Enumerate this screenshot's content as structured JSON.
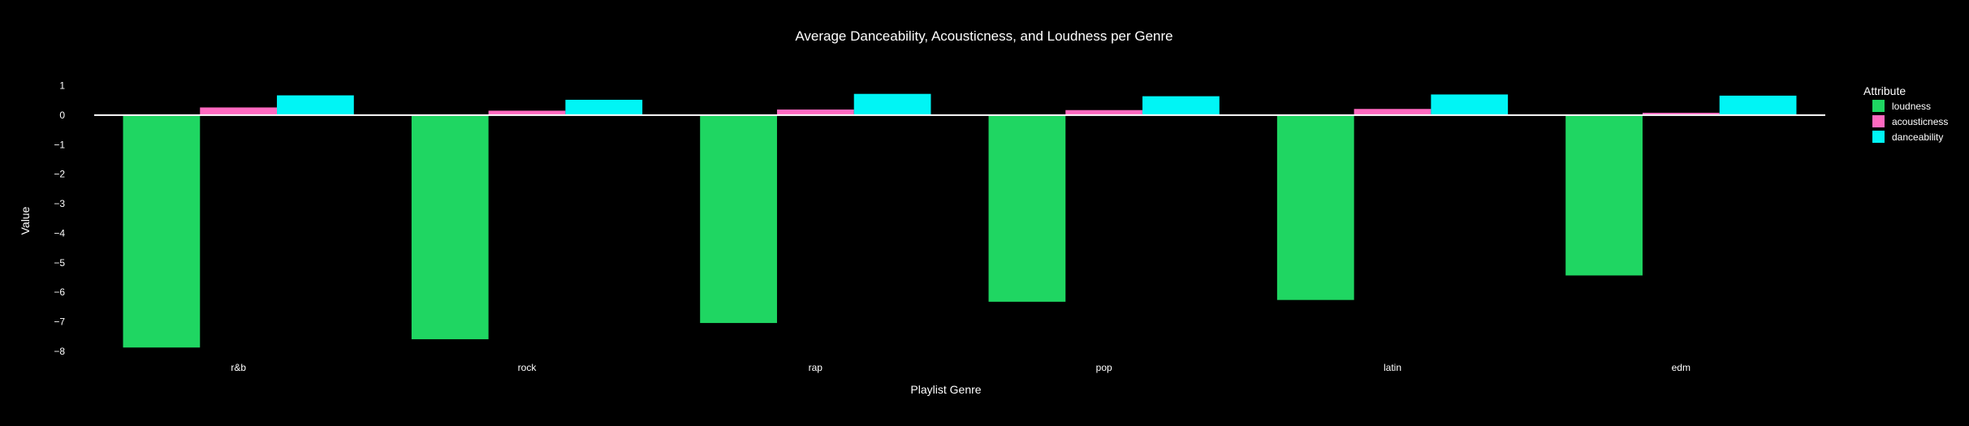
{
  "chart_data": {
    "type": "bar",
    "title": "Average Danceability, Acousticness, and Loudness per Genre",
    "xlabel": "Playlist Genre",
    "ylabel": "Value",
    "categories": [
      "r&b",
      "rock",
      "rap",
      "pop",
      "latin",
      "edm"
    ],
    "series": [
      {
        "name": "loudness",
        "color": "#1fd662",
        "values": [
          -7.87,
          -7.59,
          -7.04,
          -6.32,
          -6.26,
          -5.43
        ]
      },
      {
        "name": "acousticness",
        "color": "#ff69c0",
        "values": [
          0.26,
          0.15,
          0.19,
          0.17,
          0.21,
          0.08
        ]
      },
      {
        "name": "danceability",
        "color": "#00f5f5",
        "values": [
          0.67,
          0.52,
          0.72,
          0.64,
          0.7,
          0.66
        ]
      }
    ],
    "yticks": [
      1,
      0,
      -1,
      -2,
      -3,
      -4,
      -5,
      -6,
      -7,
      -8
    ],
    "ylim": [
      -8,
      1
    ],
    "legend": {
      "title": "Attribute",
      "position": "top-right"
    },
    "grid": false,
    "background": "#000000"
  }
}
